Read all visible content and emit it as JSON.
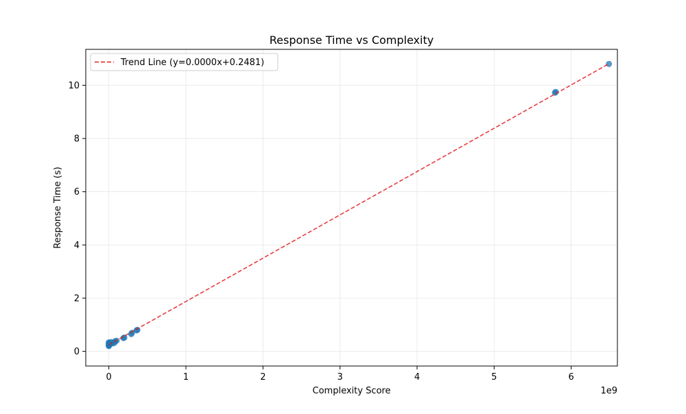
{
  "chart_data": {
    "type": "scatter",
    "title": "Response Time vs Complexity",
    "xlabel": "Complexity Score",
    "ylabel": "Response Time (s)",
    "x_offset_label": "1e9",
    "xlim": [
      -0.3,
      6.6
    ],
    "ylim": [
      -0.55,
      11.35
    ],
    "x_ticks": [
      0,
      1,
      2,
      3,
      4,
      5,
      6
    ],
    "y_ticks": [
      0,
      2,
      4,
      6,
      8,
      10
    ],
    "grid": true,
    "legend_position": "top-left",
    "points": [
      {
        "x": 0.0,
        "y": 0.2
      },
      {
        "x": 0.0,
        "y": 0.22
      },
      {
        "x": 0.0,
        "y": 0.25
      },
      {
        "x": 0.0,
        "y": 0.28
      },
      {
        "x": 0.0,
        "y": 0.31
      },
      {
        "x": 0.0,
        "y": 0.34
      },
      {
        "x": 0.01,
        "y": 0.26
      },
      {
        "x": 0.02,
        "y": 0.3
      },
      {
        "x": 0.03,
        "y": 0.35
      },
      {
        "x": 0.05,
        "y": 0.3
      },
      {
        "x": 0.07,
        "y": 0.32
      },
      {
        "x": 0.08,
        "y": 0.38
      },
      {
        "x": 0.1,
        "y": 0.4
      },
      {
        "x": 0.19,
        "y": 0.5
      },
      {
        "x": 0.2,
        "y": 0.52
      },
      {
        "x": 0.29,
        "y": 0.65
      },
      {
        "x": 0.3,
        "y": 0.7
      },
      {
        "x": 0.36,
        "y": 0.79
      },
      {
        "x": 0.37,
        "y": 0.81
      },
      {
        "x": 5.79,
        "y": 9.72
      },
      {
        "x": 5.8,
        "y": 9.75
      },
      {
        "x": 6.49,
        "y": 10.8
      }
    ],
    "trend_line": {
      "label": "Trend Line (y=0.0000x+0.2481)",
      "x": [
        0.0,
        6.49
      ],
      "y": [
        0.2481,
        10.81
      ]
    },
    "colors": {
      "points": "#1f77b4",
      "trend": "#e41a1c",
      "grid": "#e6e6e6"
    }
  }
}
